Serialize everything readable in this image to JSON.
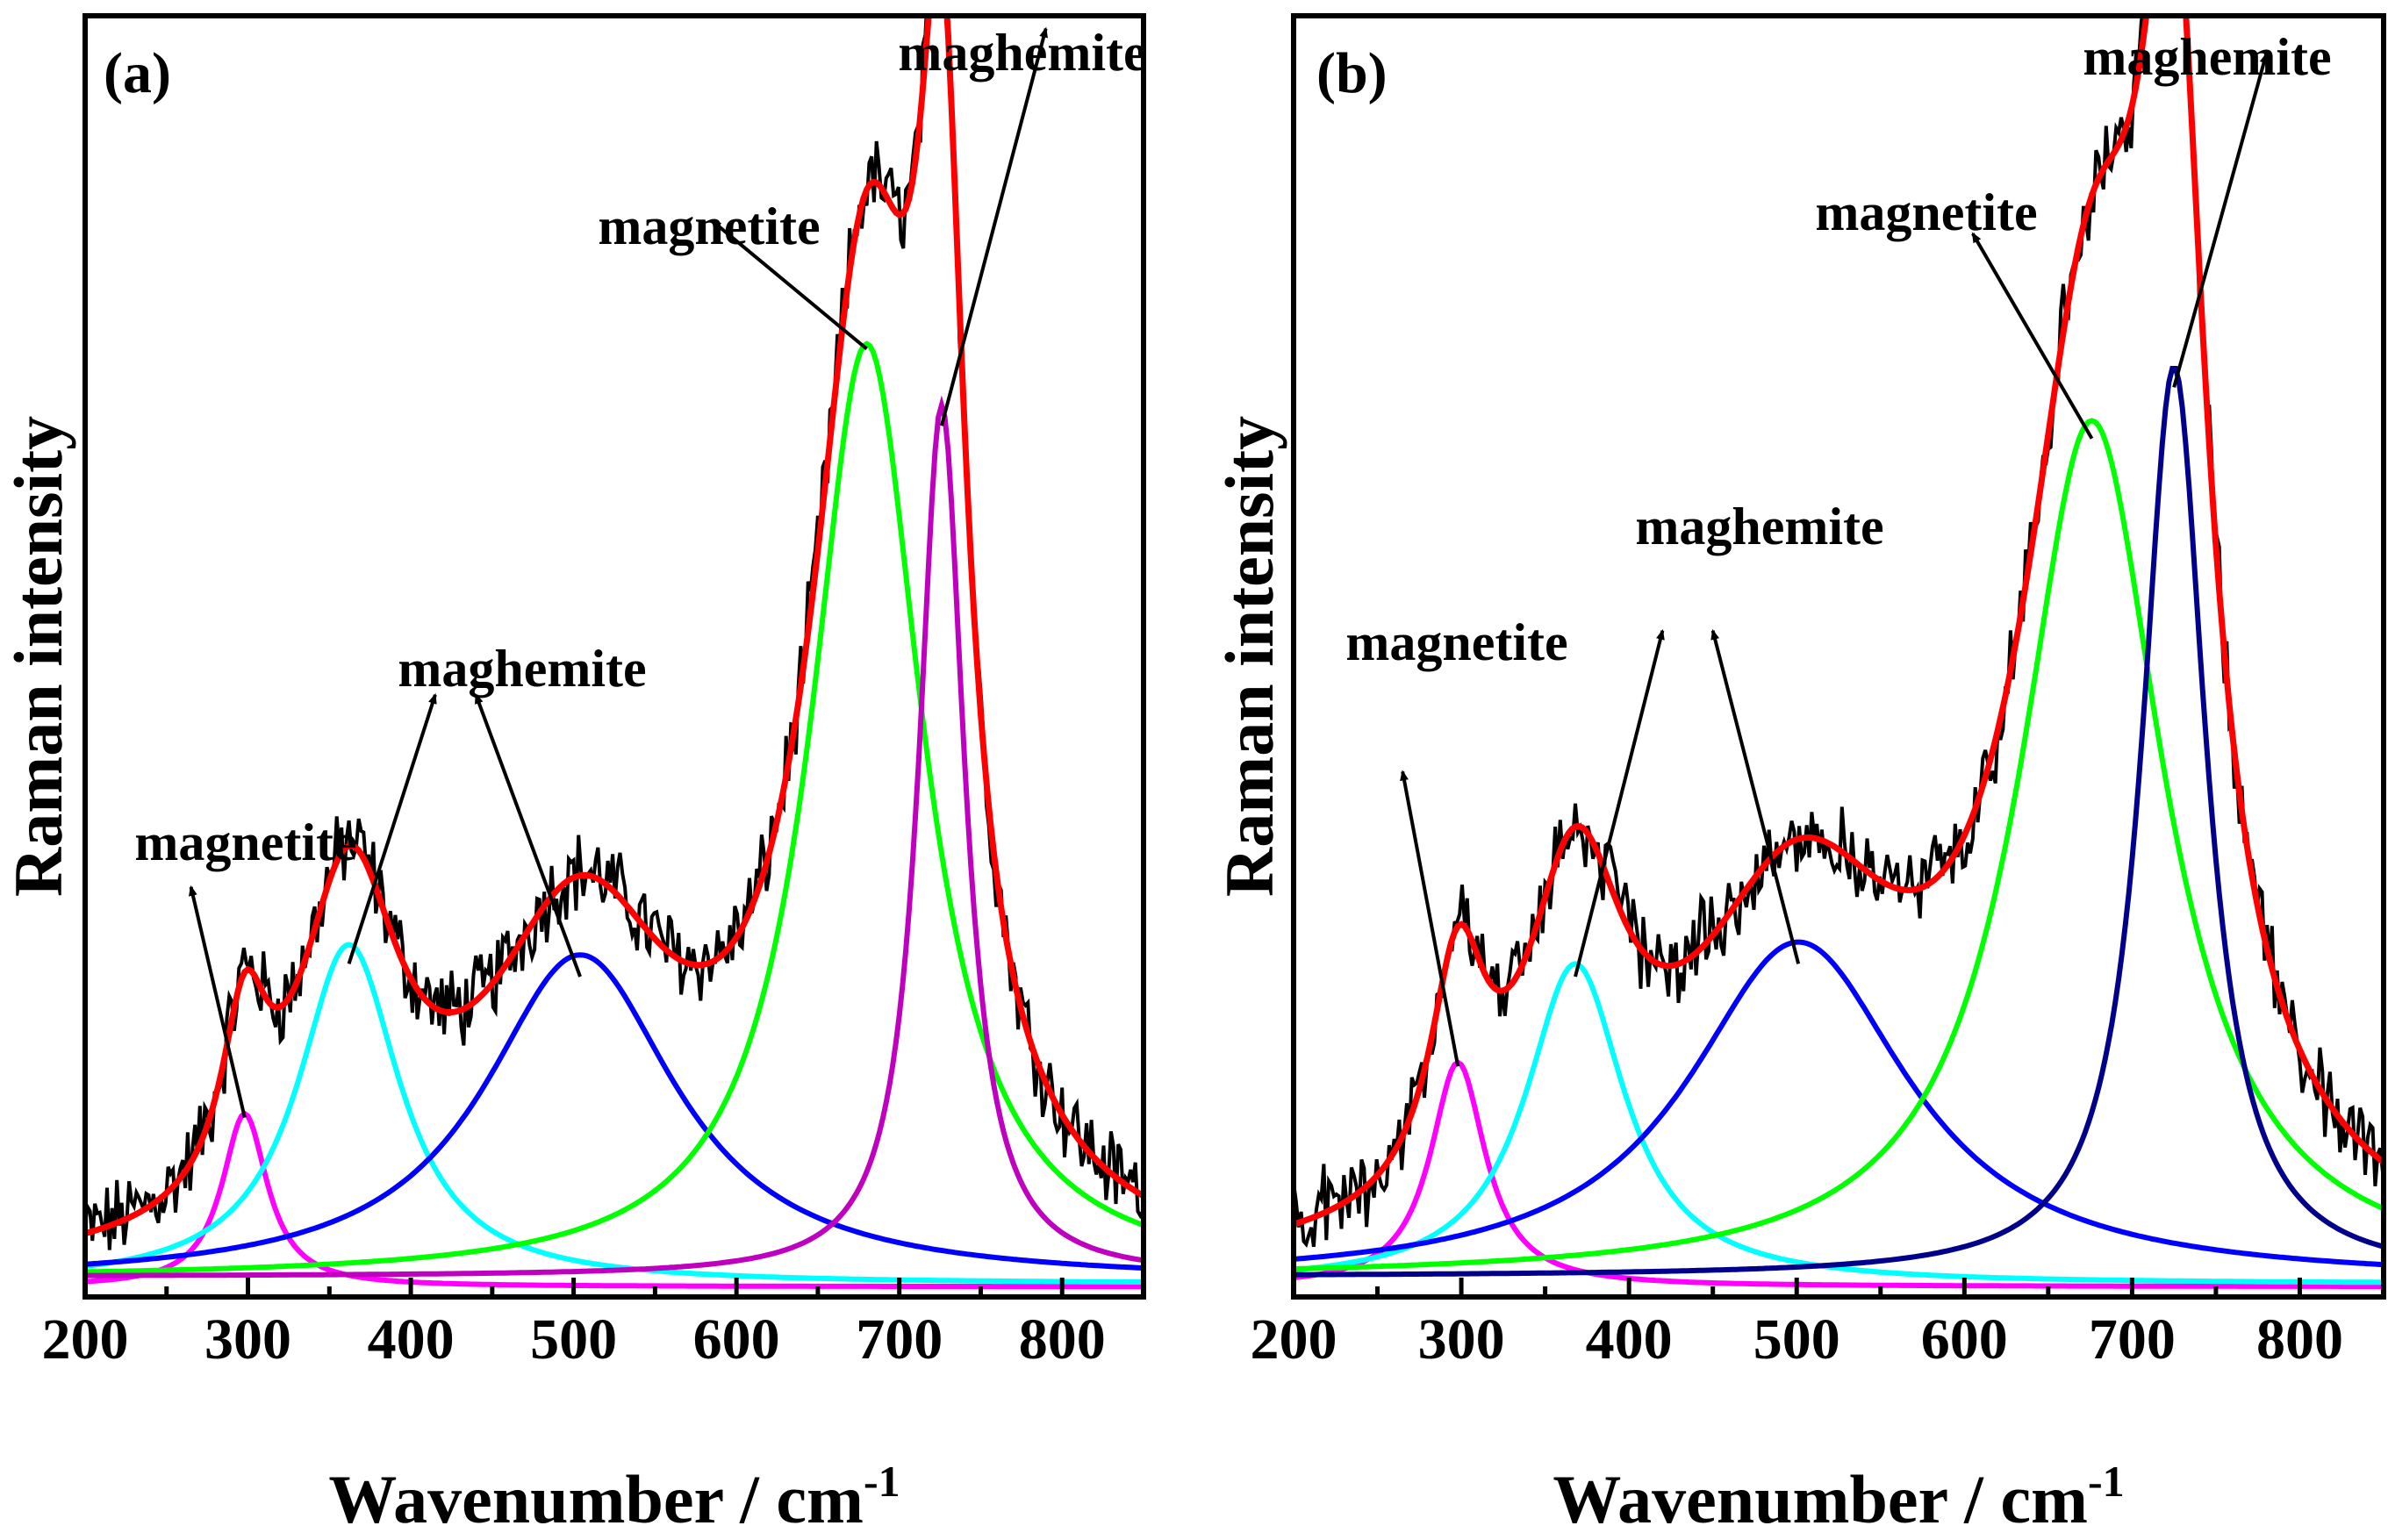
{
  "chart_data": [
    {
      "type": "line",
      "panel": "(a)",
      "xlabel": "Wavenumber / cm",
      "xlabel_sup": "-1",
      "ylabel": "Raman intensity",
      "xlim": [
        200,
        850
      ],
      "ylim": [
        0,
        1.0
      ],
      "xticks": [
        200,
        300,
        400,
        500,
        600,
        700,
        800
      ],
      "peaks": [
        {
          "name": "magnetite",
          "color": "#ff00ff",
          "center": 298,
          "amp": 0.135,
          "hwhm": 17
        },
        {
          "name": "maghemite",
          "color": "#00ffff",
          "center": 362,
          "amp": 0.265,
          "hwhm": 38
        },
        {
          "name": "maghemite",
          "color": "#0000ff",
          "center": 504,
          "amp": 0.255,
          "hwhm": 72
        },
        {
          "name": "magnetite",
          "color": "#00ff00",
          "center": 680,
          "amp": 0.73,
          "hwhm": 42
        },
        {
          "name": "maghemite",
          "color": "#bf00bf",
          "center": 726,
          "amp": 0.68,
          "hwhm": 17
        }
      ],
      "fit": {
        "name": "fit",
        "color": "#ff0000"
      },
      "measured": {
        "name": "measured",
        "color": "#000000"
      },
      "annotations": [
        {
          "text": "magnetite",
          "target": [
            298,
            0.14
          ],
          "tail": [
            265,
            0.32
          ]
        },
        {
          "text": "maghemite",
          "target": [
            362,
            0.26
          ],
          "tail": [
            415,
            0.47
          ]
        },
        {
          "text": "",
          "target": [
            504,
            0.25
          ],
          "tail": [
            440,
            0.47
          ]
        },
        {
          "text": "magnetite",
          "target": [
            680,
            0.74
          ],
          "tail": [
            585,
            0.84
          ]
        },
        {
          "text": "maghemite",
          "target": [
            726,
            0.68
          ],
          "tail": [
            790,
            0.99
          ]
        }
      ]
    },
    {
      "type": "line",
      "panel": "(b)",
      "xlabel": "Wavenumber / cm",
      "xlabel_sup": "-1",
      "ylabel": "Raman intensity",
      "xlim": [
        200,
        850
      ],
      "ylim": [
        0,
        1.0
      ],
      "xticks": [
        200,
        300,
        400,
        500,
        600,
        700,
        800
      ],
      "peaks": [
        {
          "name": "magnetite",
          "color": "#ff00ff",
          "center": 298,
          "amp": 0.175,
          "hwhm": 20
        },
        {
          "name": "maghemite",
          "color": "#00ffff",
          "center": 368,
          "amp": 0.25,
          "hwhm": 36
        },
        {
          "name": "maghemite",
          "color": "#0000ff",
          "center": 501,
          "amp": 0.265,
          "hwhm": 80
        },
        {
          "name": "magnetite",
          "color": "#00ff00",
          "center": 676,
          "amp": 0.67,
          "hwhm": 52
        },
        {
          "name": "maghemite",
          "color": "#00008b",
          "center": 725,
          "amp": 0.71,
          "hwhm": 23
        }
      ],
      "fit": {
        "name": "fit",
        "color": "#ff0000"
      },
      "measured": {
        "name": "measured",
        "color": "#000000"
      },
      "annotations": [
        {
          "text": "magnetite",
          "target": [
            298,
            0.18
          ],
          "tail": [
            265,
            0.41
          ]
        },
        {
          "text": "",
          "target": [
            368,
            0.25
          ],
          "tail": [
            420,
            0.52
          ]
        },
        {
          "text": "maghemite",
          "target": [
            501,
            0.26
          ],
          "tail": [
            450,
            0.52
          ]
        },
        {
          "text": "magnetite",
          "target": [
            676,
            0.67
          ],
          "tail": [
            605,
            0.83
          ]
        },
        {
          "text": "maghemite",
          "target": [
            725,
            0.71
          ],
          "tail": [
            780,
            0.97
          ]
        }
      ]
    }
  ],
  "panels": [
    {
      "label": "(a)",
      "ylabel": "Raman intensity",
      "xlabel": "Wavenumber / cm",
      "xlabel_sup": "-1",
      "xticks": [
        "200",
        "300",
        "400",
        "500",
        "600",
        "700",
        "800"
      ],
      "annotations": [
        "magnetite",
        "maghemite",
        "magnetite",
        "maghemite"
      ]
    },
    {
      "label": "(b)",
      "ylabel": "Raman intensity",
      "xlabel": "Wavenumber / cm",
      "xlabel_sup": "-1",
      "xticks": [
        "200",
        "300",
        "400",
        "500",
        "600",
        "700",
        "800"
      ],
      "annotations": [
        "magnetite",
        "maghemite",
        "magnetite",
        "maghemite"
      ]
    }
  ]
}
